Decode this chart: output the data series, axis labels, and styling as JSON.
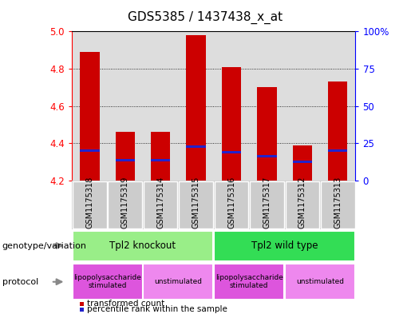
{
  "title": "GDS5385 / 1437438_x_at",
  "samples": [
    "GSM1175318",
    "GSM1175319",
    "GSM1175314",
    "GSM1175315",
    "GSM1175316",
    "GSM1175317",
    "GSM1175312",
    "GSM1175313"
  ],
  "bar_values": [
    4.89,
    4.46,
    4.46,
    4.98,
    4.81,
    4.7,
    4.39,
    4.73
  ],
  "bar_base": 4.2,
  "percentile_values": [
    4.36,
    4.31,
    4.31,
    4.38,
    4.35,
    4.33,
    4.3,
    4.36
  ],
  "ylim": [
    4.2,
    5.0
  ],
  "y_ticks_left": [
    4.2,
    4.4,
    4.6,
    4.8,
    5.0
  ],
  "y_ticks_right": [
    0,
    25,
    50,
    75,
    100
  ],
  "bar_color": "#cc0000",
  "percentile_color": "#2222cc",
  "bar_width": 0.55,
  "genotype_groups": [
    {
      "label": "Tpl2 knockout",
      "start": 0,
      "end": 3,
      "color": "#99ee88"
    },
    {
      "label": "Tpl2 wild type",
      "start": 4,
      "end": 7,
      "color": "#33dd55"
    }
  ],
  "protocol_groups": [
    {
      "label": "lipopolysaccharide\nstimulated",
      "start": 0,
      "end": 1,
      "color": "#dd55dd"
    },
    {
      "label": "unstimulated",
      "start": 2,
      "end": 3,
      "color": "#ee88ee"
    },
    {
      "label": "lipopolysaccharide\nstimulated",
      "start": 4,
      "end": 5,
      "color": "#dd55dd"
    },
    {
      "label": "unstimulated",
      "start": 6,
      "end": 7,
      "color": "#ee88ee"
    }
  ],
  "legend_items": [
    {
      "label": "transformed count",
      "color": "#cc0000"
    },
    {
      "label": "percentile rank within the sample",
      "color": "#2222cc"
    }
  ],
  "left_label_geno": "genotype/variation",
  "left_label_proto": "protocol",
  "sample_bg": "#cccccc",
  "plot_bg": "#dddddd",
  "title_fontsize": 11,
  "axis_fontsize": 9,
  "tick_fontsize": 8.5,
  "label_fontsize": 7.5,
  "sample_fontsize": 7
}
